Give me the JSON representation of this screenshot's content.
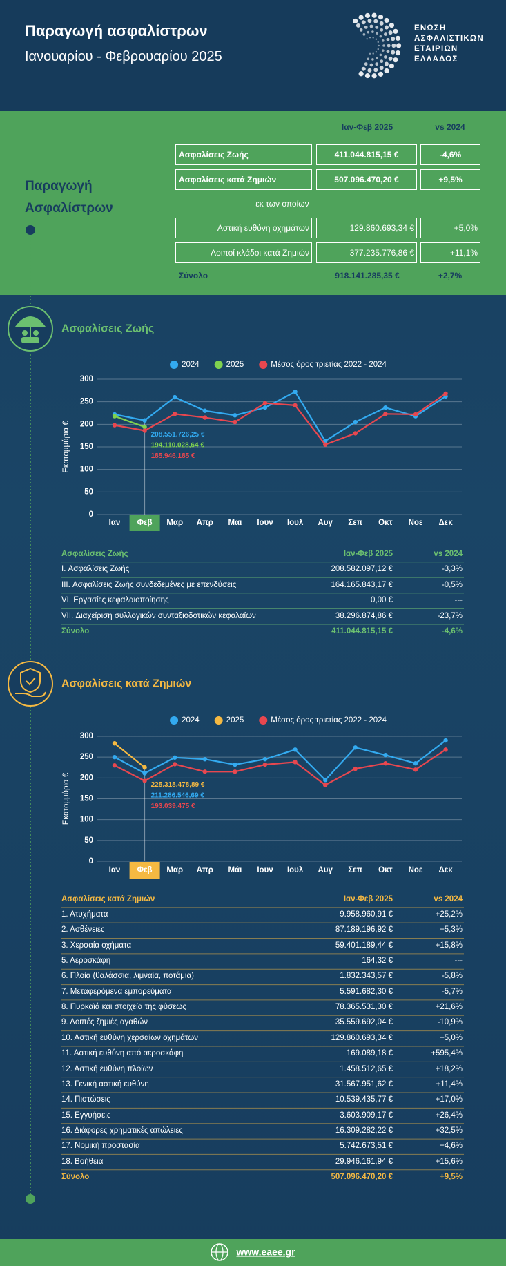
{
  "header": {
    "title": "Παραγωγή ασφαλίστρων",
    "subtitle": "Ιανουαρίου - Φεβρουαρίου 2025",
    "logo_lines": [
      "ΕΝΩΣΗ",
      "ΑΣΦΑΛΙΣΤΙΚΩΝ",
      "ΕΤΑΙΡΙΩΝ",
      "ΕΛΛΑΔΟΣ"
    ]
  },
  "summary": {
    "title": "Παραγωγή Ασφαλίστρων",
    "columns": [
      "Ιαν-Φεβ 2025",
      "vs 2024"
    ],
    "rows": [
      [
        "Ασφαλίσεις Ζωής",
        "411.044.815,15 €",
        "-4,6%"
      ],
      [
        "Ασφαλίσεις κατά Ζημιών",
        "507.096.470,20 €",
        "+9,5%"
      ]
    ],
    "subnote": "εκ των οποίων",
    "subrows": [
      [
        "Αστική ευθύνη οχημάτων",
        "129.860.693,34 €",
        "+5,0%"
      ],
      [
        "Λοιποί κλάδοι κατά Ζημιών",
        "377.235.776,86 €",
        "+11,1%"
      ]
    ],
    "total": [
      "Σύνολο",
      "918.141.285,35 €",
      "+2,7%"
    ]
  },
  "life": {
    "title": "Ασφαλίσεις Ζωής",
    "table": {
      "header": [
        "Ασφαλίσεις Ζωής",
        "Ιαν-Φεβ 2025",
        "vs 2024"
      ],
      "rows": [
        [
          "I. Ασφαλίσεις  Ζωής",
          "208.582.097,12 €",
          "-3,3%"
        ],
        [
          "III. Ασφαλίσεις  Ζωής  συνδεδεμένες με επενδύσεις",
          "164.165.843,17 €",
          "-0,5%"
        ],
        [
          "VI. Εργασίες κεφαλαιοποίησης",
          "0,00 €",
          "---"
        ],
        [
          "VII. Διαχείριση συλλογικών συνταξιοδοτικών κεφαλαίων",
          "38.296.874,86 €",
          "-23,7%"
        ]
      ],
      "total": [
        "Σύνολο",
        "411.044.815,15 €",
        "-4,6%"
      ]
    }
  },
  "nonlife": {
    "title": "Ασφαλίσεις κατά Ζημιών",
    "table": {
      "header": [
        "Ασφαλίσεις κατά Ζημιών",
        "Ιαν-Φεβ 2025",
        "vs 2024"
      ],
      "rows": [
        [
          "1. Ατυχήματα",
          "9.958.960,91 €",
          "+25,2%"
        ],
        [
          "2. Ασθένειες",
          "87.189.196,92 €",
          "+5,3%"
        ],
        [
          "3. Χερσαία οχήματα",
          "59.401.189,44 €",
          "+15,8%"
        ],
        [
          "5. Αεροσκάφη",
          "164,32 €",
          "---"
        ],
        [
          "6. Πλοία (θαλάσσια, λιμναία, ποτάμια)",
          "1.832.343,57 €",
          "-5,8%"
        ],
        [
          "7. Μεταφερόμενα εμπορεύματα",
          "5.591.682,30 €",
          "-5,7%"
        ],
        [
          "8. Πυρκαϊά και στοιχεία της φύσεως",
          "78.365.531,30 €",
          "+21,6%"
        ],
        [
          "9. Λοιπές ζημιές αγαθών",
          "35.559.692,04 €",
          "-10,9%"
        ],
        [
          "10. Αστική ευθύνη χερσαίων οχημάτων",
          "129.860.693,34 €",
          "+5,0%"
        ],
        [
          "11. Αστική ευθύνη από αεροσκάφη",
          "169.089,18 €",
          "+595,4%"
        ],
        [
          "12. Αστική ευθύνη πλοίων",
          "1.458.512,65 €",
          "+18,2%"
        ],
        [
          "13. Γενική αστική ευθύνη",
          "31.567.951,62 €",
          "+11,4%"
        ],
        [
          "14. Πιστώσεις",
          "10.539.435,77 €",
          "+17,0%"
        ],
        [
          "15. Εγγυήσεις",
          "3.603.909,17 €",
          "+26,4%"
        ],
        [
          "16. Διάφορες χρηματικές απώλειες",
          "16.309.282,22 €",
          "+32,5%"
        ],
        [
          "17. Νομική προστασία",
          "5.742.673,51 €",
          "+4,6%"
        ],
        [
          "18. Βοήθεια",
          "29.946.161,94 €",
          "+15,6%"
        ]
      ],
      "total": [
        "Σύνολο",
        "507.096.470,20 €",
        "+9,5%"
      ]
    }
  },
  "chart_data": [
    {
      "type": "line",
      "y_label": "Εκατομμύρια €",
      "categories": [
        "Ιαν",
        "Φεβ",
        "Μαρ",
        "Απρ",
        "Μάι",
        "Ιουν",
        "Ιουλ",
        "Αυγ",
        "Σεπ",
        "Οκτ",
        "Νοε",
        "Δεκ"
      ],
      "ylim": [
        0,
        300
      ],
      "yticks": [
        0,
        50,
        100,
        150,
        200,
        250,
        300
      ],
      "grid": true,
      "highlight_index": 1,
      "highlight_color": "#4fa35b",
      "series": [
        {
          "name": "2024",
          "color": "#33aaf0",
          "values": [
            222,
            208.55,
            260,
            230,
            220,
            237,
            272,
            163,
            205,
            237,
            218,
            262
          ],
          "value_labels": [
            null,
            "208.551.726,25 €",
            null,
            null,
            null,
            null,
            null,
            null,
            null,
            null,
            null,
            null
          ]
        },
        {
          "name": "2025",
          "color": "#7fd24f",
          "values": [
            218,
            194.11,
            null,
            null,
            null,
            null,
            null,
            null,
            null,
            null,
            null,
            null
          ],
          "value_labels": [
            null,
            "194.110.028,64 €",
            null,
            null,
            null,
            null,
            null,
            null,
            null,
            null,
            null,
            null
          ]
        },
        {
          "name": "Μέσος όρος τριετίας 2022 - 2024",
          "color": "#e8474f",
          "values": [
            198,
            185.95,
            223,
            215,
            205,
            247,
            242,
            155,
            180,
            223,
            222,
            268
          ],
          "value_labels": [
            null,
            "185.946.185 €",
            null,
            null,
            null,
            null,
            null,
            null,
            null,
            null,
            null,
            null
          ]
        }
      ]
    },
    {
      "type": "line",
      "y_label": "Εκατομμύρια €",
      "categories": [
        "Ιαν",
        "Φεβ",
        "Μαρ",
        "Απρ",
        "Μάι",
        "Ιουν",
        "Ιουλ",
        "Αυγ",
        "Σεπ",
        "Οκτ",
        "Νοε",
        "Δεκ"
      ],
      "ylim": [
        0,
        300
      ],
      "yticks": [
        0,
        50,
        100,
        150,
        200,
        250,
        300
      ],
      "grid": true,
      "highlight_index": 1,
      "highlight_color": "#f5b942",
      "series": [
        {
          "name": "2024",
          "color": "#33aaf0",
          "values": [
            250,
            211.29,
            249,
            245,
            232,
            245,
            268,
            195,
            273,
            255,
            235,
            290
          ],
          "value_labels": [
            null,
            "211.286.546,69 €",
            null,
            null,
            null,
            null,
            null,
            null,
            null,
            null,
            null,
            null
          ]
        },
        {
          "name": "2025",
          "color": "#f5b942",
          "values": [
            283,
            225.32,
            null,
            null,
            null,
            null,
            null,
            null,
            null,
            null,
            null,
            null
          ],
          "value_labels": [
            null,
            "225.318.478,89 €",
            null,
            null,
            null,
            null,
            null,
            null,
            null,
            null,
            null,
            null
          ]
        },
        {
          "name": "Μέσος όρος τριετίας 2022 - 2024",
          "color": "#e8474f",
          "values": [
            230,
            193.04,
            233,
            215,
            215,
            232,
            238,
            183,
            222,
            235,
            220,
            268
          ],
          "value_labels": [
            null,
            "193.039.475 €",
            null,
            null,
            null,
            null,
            null,
            null,
            null,
            null,
            null,
            null
          ]
        }
      ]
    }
  ],
  "footer": {
    "link": "www.eaee.gr"
  }
}
